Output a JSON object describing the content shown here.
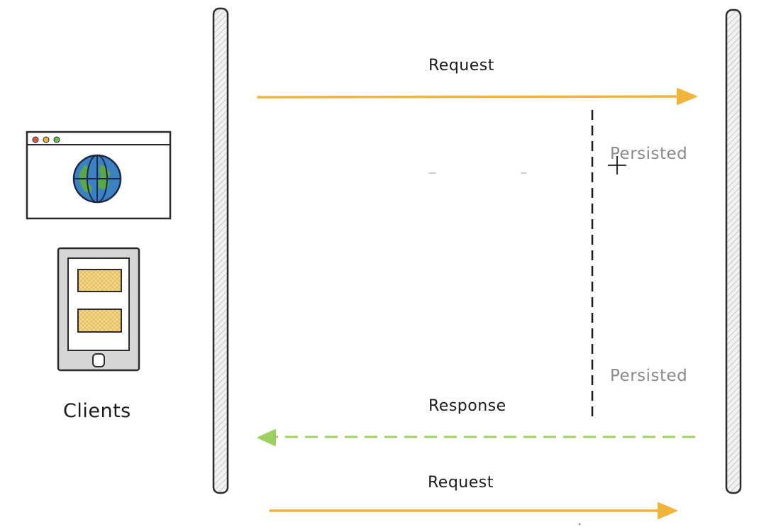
{
  "diagram": {
    "clients_label": "Clients",
    "request_top_label": "Request",
    "response_label": "Response",
    "request_bottom_label": "Request",
    "persisted_top_label": "Persisted",
    "persisted_bottom_label": "Persisted"
  },
  "colors": {
    "request_arrow": "#f0b53d",
    "response_arrow": "#9cd05f",
    "pillar_stroke": "#2b2b2b",
    "pillar_fill": "#e9e9e9",
    "globe_ocean": "#3b82c4",
    "globe_land": "#5aa84a",
    "card_fill": "#f5d88a",
    "device_fill": "#d6d6d6"
  },
  "icons": {
    "browser": "browser-window-icon",
    "globe": "globe-icon",
    "mobile": "mobile-device-icon"
  }
}
